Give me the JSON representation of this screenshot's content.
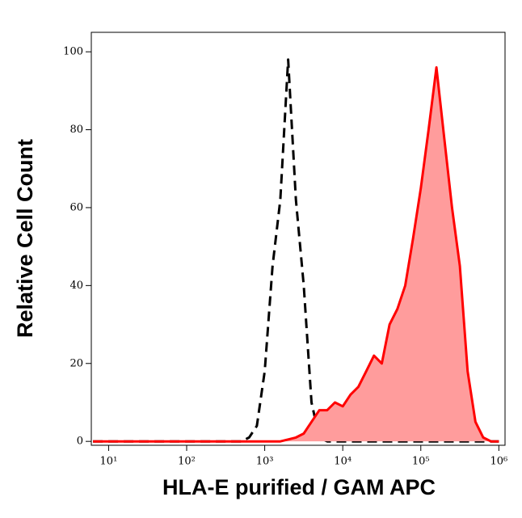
{
  "chart_data": {
    "type": "area",
    "x_label": "HLA-E purified / GAM APC",
    "y_label": "Relative Cell Count",
    "log_x": true,
    "x": [
      6.31,
      7.94,
      10,
      12.6,
      15.8,
      20,
      25.1,
      31.6,
      39.8,
      50.1,
      63.1,
      79.4,
      100,
      126,
      158,
      200,
      251,
      316,
      398,
      501,
      631,
      794,
      1000,
      1259,
      1585,
      1995,
      2512,
      3162,
      3981,
      5012,
      6310,
      7943,
      10000,
      12589,
      15849,
      19953,
      25119,
      31623,
      39811,
      50119,
      63096,
      79433,
      100000,
      125893,
      158489,
      199526,
      251189,
      316228,
      398107,
      501187,
      630957,
      794328,
      1000000
    ],
    "series": [
      {
        "color": "#000000",
        "dashed": true,
        "filled": false,
        "values": [
          0,
          0,
          0,
          0,
          0,
          0,
          0,
          0,
          0,
          0,
          0,
          0,
          0,
          0,
          0,
          0,
          0,
          0,
          0,
          0,
          1,
          4,
          18,
          45,
          62,
          98,
          62,
          40,
          10,
          1,
          0,
          0,
          0,
          0,
          0,
          0,
          0,
          0,
          0,
          0,
          0,
          0,
          0,
          0,
          0,
          0,
          0,
          0,
          0,
          0,
          0,
          0,
          0
        ]
      },
      {
        "color": "#ff0000",
        "fill": "#ff9c9c",
        "dashed": false,
        "filled": true,
        "values": [
          0,
          0,
          0,
          0,
          0,
          0,
          0,
          0,
          0,
          0,
          0,
          0,
          0,
          0,
          0,
          0,
          0,
          0,
          0,
          0,
          0,
          0,
          0,
          0,
          0,
          0.5,
          1,
          2,
          5,
          8,
          8,
          10,
          9,
          12,
          14,
          18,
          22,
          20,
          30,
          34,
          40,
          52,
          65,
          80,
          96,
          78,
          60,
          45,
          18,
          5,
          1,
          0,
          0
        ]
      }
    ],
    "xlim": [
      6,
      1200000
    ],
    "xticks": [
      {
        "value": 10,
        "label": "10¹"
      },
      {
        "value": 100,
        "label": "10²"
      },
      {
        "value": 1000,
        "label": "10³"
      },
      {
        "value": 10000,
        "label": "10⁴"
      },
      {
        "value": 100000,
        "label": "10⁵"
      },
      {
        "value": 1000000,
        "label": "10⁶"
      }
    ],
    "ylim": [
      -1,
      105
    ],
    "yticks": [
      0,
      20,
      40,
      60,
      80,
      100
    ]
  }
}
